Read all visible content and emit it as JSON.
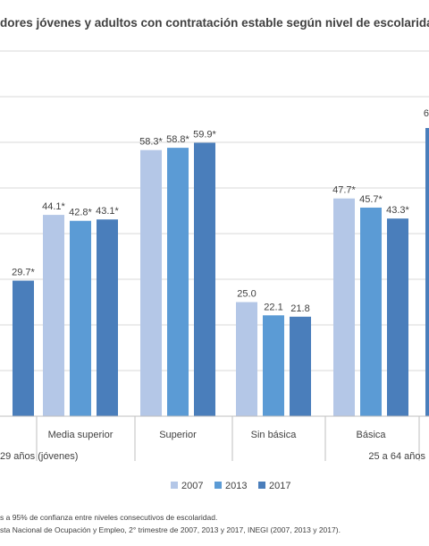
{
  "chart_data": {
    "type": "bar",
    "title": "dores jóvenes y adultos con contratación estable según nivel de escolaridad",
    "series": [
      {
        "name": "2007",
        "color": "#b4c7e7"
      },
      {
        "name": "2013",
        "color": "#5b9bd5"
      },
      {
        "name": "2017",
        "color": "#4a7ebb"
      }
    ],
    "groups": [
      {
        "label": "29 años (jóvenes)",
        "categories": [
          {
            "label": "",
            "values": [
              null,
              null,
              29.7
            ],
            "labels": [
              "",
              "",
              "29.7*"
            ]
          },
          {
            "label": "Media superior",
            "values": [
              44.1,
              42.8,
              43.1
            ],
            "labels": [
              "44.1*",
              "42.8*",
              "43.1*"
            ]
          },
          {
            "label": "Superior",
            "values": [
              58.3,
              58.8,
              59.9
            ],
            "labels": [
              "58.3*",
              "58.8*",
              "59.9*"
            ]
          }
        ]
      },
      {
        "label": "25 a 64 años",
        "categories": [
          {
            "label": "Sin básica",
            "values": [
              25.0,
              22.1,
              21.8
            ],
            "labels": [
              "25.0",
              "22.1",
              "21.8"
            ]
          },
          {
            "label": "Básica",
            "values": [
              47.7,
              45.7,
              43.3
            ],
            "labels": [
              "47.7*",
              "45.7*",
              "43.3*"
            ]
          },
          {
            "label": "",
            "values": [
              null,
              null,
              null
            ],
            "labels": [
              "",
              "",
              ""
            ]
          }
        ]
      }
    ],
    "partial_label": "6",
    "ylim": [
      0,
      80
    ],
    "gridlines": [
      0,
      10,
      20,
      30,
      40,
      50,
      60,
      70,
      80
    ],
    "grid": true,
    "legend": "bottom-center"
  },
  "notes": {
    "line1": "s a 95% de confianza entre niveles consecutivos de escolaridad.",
    "line2": "sta Nacional de Ocupación y Empleo, 2° trimestre de 2007, 2013 y 2017, INEGI (2007, 2013 y 2017)."
  }
}
